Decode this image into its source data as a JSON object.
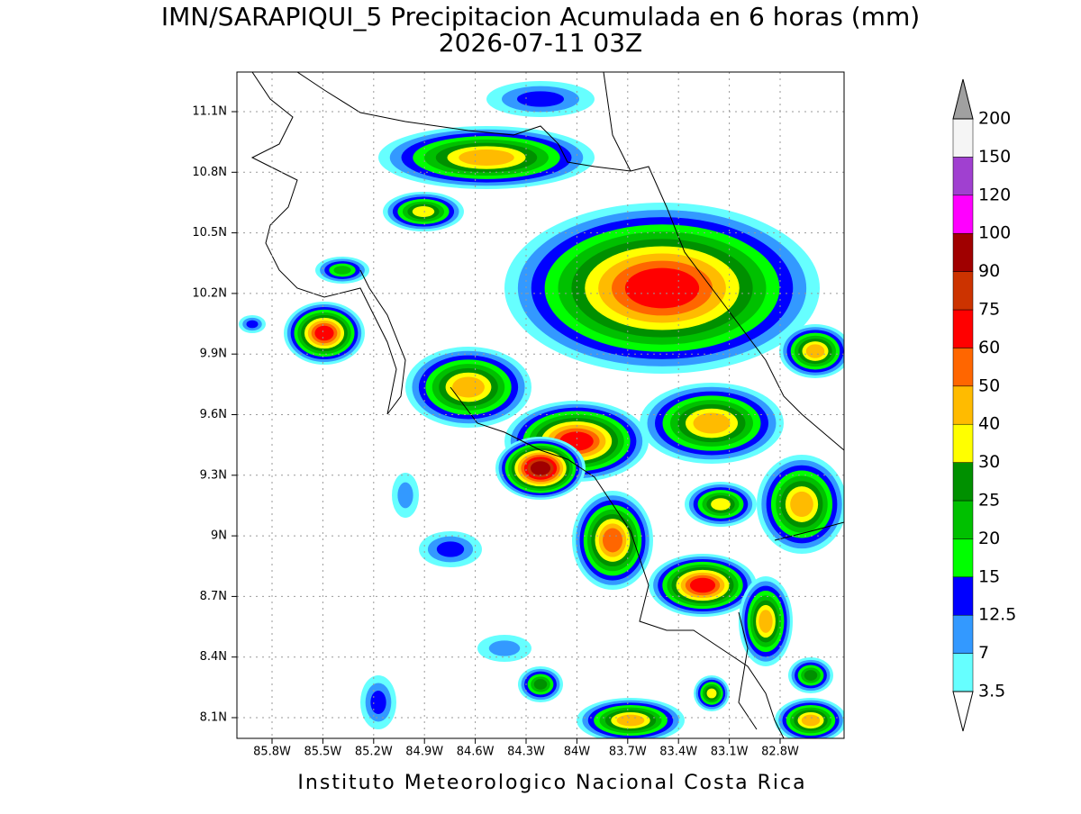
{
  "title": "IMN/SARAPIQUI_5 Precipitacion Acumulada en 6 horas (mm)",
  "subtitle": "2026-07-11 03Z",
  "x_axis": {
    "ticks": [
      "85.8W",
      "85.5W",
      "85.2W",
      "84.9W",
      "84.6W",
      "84.3W",
      "84W",
      "83.7W",
      "83.4W",
      "83.1W",
      "82.8W"
    ]
  },
  "y_axis": {
    "ticks": [
      "11.1N",
      "10.8N",
      "10.5N",
      "10.2N",
      "9.9N",
      "9.6N",
      "9.3N",
      "9N",
      "8.7N",
      "8.4N",
      "8.1N"
    ]
  },
  "colorbar": {
    "levels": [
      3.5,
      7,
      12.5,
      15,
      20,
      25,
      30,
      40,
      50,
      60,
      75,
      90,
      100,
      120,
      150,
      200
    ],
    "colors": [
      "#66ffff",
      "#3399ff",
      "#0000ff",
      "#00ff00",
      "#00c000",
      "#009000",
      "#ffff00",
      "#ffbb00",
      "#ff6600",
      "#ff0000",
      "#cc3300",
      "#a00000",
      "#ff00ff",
      "#a040d0",
      "#f5f5f5"
    ],
    "over_color": "#a0a0a0",
    "under_color": "#ffffff"
  },
  "footer": "Instituto Meteorologico Nacional Costa Rica"
}
